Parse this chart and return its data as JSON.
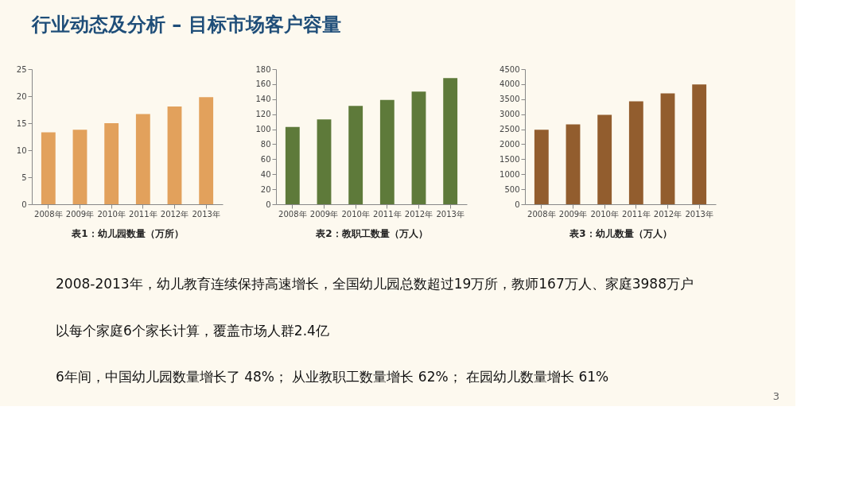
{
  "chart_data": [
    {
      "type": "other",
      "title": "行业动态及分析 – 目标市场客户容量"
    },
    {
      "type": "bar",
      "xlabel": "表1：幼儿园数量（万所）",
      "categories": [
        "2008年",
        "2009年",
        "2010年",
        "2011年",
        "2012年",
        "2013年"
      ],
      "values": [
        13.3,
        13.8,
        15.0,
        16.7,
        18.1,
        19.8
      ],
      "color": "#e2a15c",
      "ylim": [
        0,
        25
      ],
      "yticks": [
        0,
        5,
        10,
        15,
        20,
        25
      ],
      "grid": false
    },
    {
      "type": "bar",
      "xlabel": "表2：教职工数量（万人）",
      "categories": [
        "2008年",
        "2009年",
        "2010年",
        "2011年",
        "2012年",
        "2013年"
      ],
      "values": [
        103,
        113,
        131,
        139,
        150,
        168
      ],
      "color": "#5e7a3a",
      "ylim": [
        0,
        180
      ],
      "yticks": [
        0,
        20,
        40,
        60,
        80,
        100,
        120,
        140,
        160,
        180
      ],
      "grid": false
    },
    {
      "type": "bar",
      "xlabel": "表3：幼儿数量（万人）",
      "categories": [
        "2008年",
        "2009年",
        "2010年",
        "2011年",
        "2012年",
        "2013年"
      ],
      "values": [
        2480,
        2660,
        2980,
        3430,
        3690,
        3990
      ],
      "color": "#925d2e",
      "ylim": [
        0,
        4500
      ],
      "yticks": [
        0,
        500,
        1000,
        1500,
        2000,
        2500,
        3000,
        3500,
        4000,
        4500
      ],
      "grid": false
    },
    {
      "type": "other",
      "annotations": [
        "2008-2013年，幼儿教育连续保持高速增长，全国幼儿园总数超过19万所，教师167万人、家庭3988万户",
        "以每个家庭6个家长计算，覆盖市场人群2.4亿",
        "6年间，中国幼儿园数量增长了 48%； 从业教职工数量增长 62%； 在园幼儿数量增长 61%",
        "3"
      ]
    }
  ]
}
